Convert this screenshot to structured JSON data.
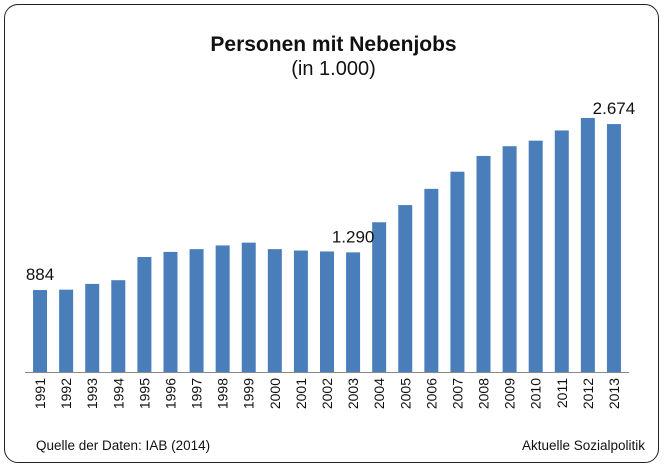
{
  "chart_data": {
    "type": "bar",
    "title": "Personen mit Nebenjobs",
    "subtitle": "(in 1.000)",
    "categories": [
      "1991",
      "1992",
      "1993",
      "1994",
      "1995",
      "1996",
      "1997",
      "1998",
      "1999",
      "2000",
      "2001",
      "2002",
      "2003",
      "2004",
      "2005",
      "2006",
      "2007",
      "2008",
      "2009",
      "2010",
      "2011",
      "2012",
      "2013"
    ],
    "values": [
      884,
      888,
      950,
      990,
      1240,
      1295,
      1325,
      1365,
      1395,
      1325,
      1310,
      1300,
      1290,
      1615,
      1800,
      1975,
      2160,
      2330,
      2435,
      2495,
      2605,
      2740,
      2674
    ],
    "data_labels": [
      {
        "index": 0,
        "text": "884"
      },
      {
        "index": 12,
        "text": "1.290"
      },
      {
        "index": 22,
        "text": "2.674"
      }
    ],
    "bar_color": "#4a7ebb",
    "ylim": [
      0,
      3300
    ],
    "grid": false,
    "xlabel": "",
    "ylabel": ""
  },
  "footer": {
    "source": "Quelle der Daten: IAB (2014)",
    "brand": "Aktuelle Sozialpolitik"
  }
}
